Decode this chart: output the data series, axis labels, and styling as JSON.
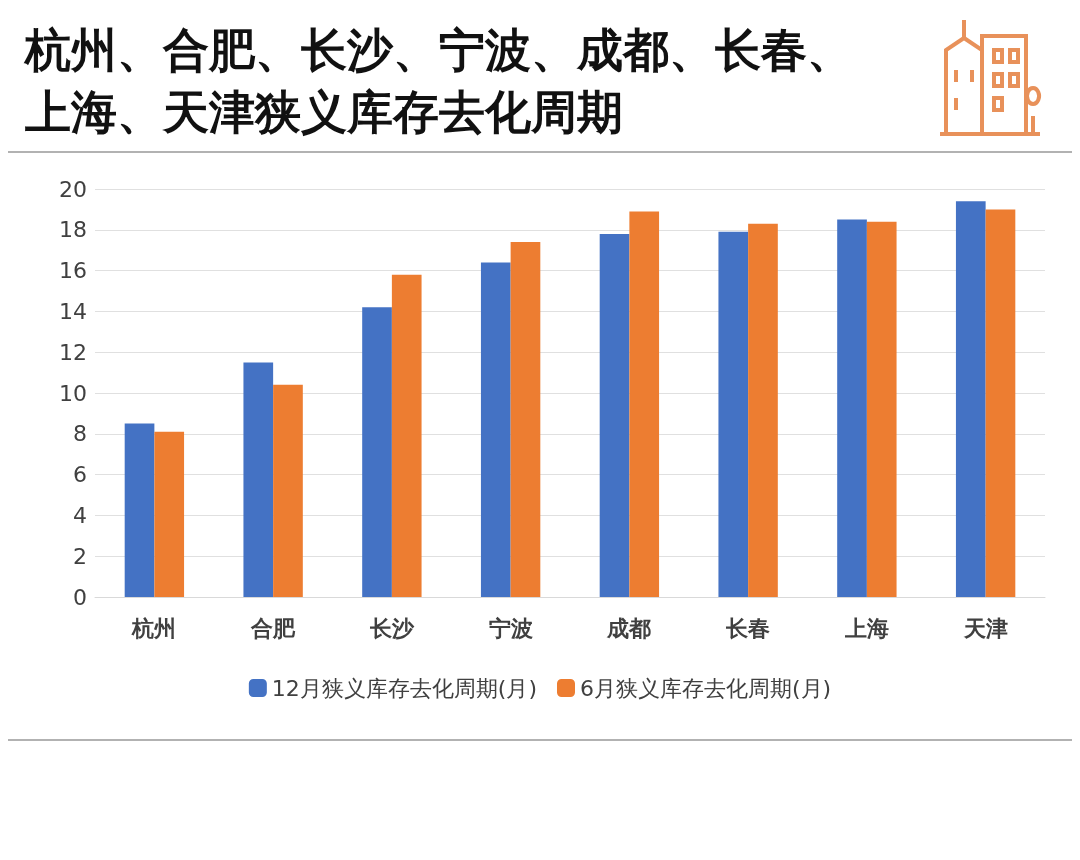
{
  "chart_data": {
    "type": "bar",
    "title": "杭州、合肥、长沙、宁波、成都、长春、上海、天津狭义库存去化周期",
    "categories": [
      "杭州",
      "合肥",
      "长沙",
      "宁波",
      "成都",
      "长春",
      "上海",
      "天津"
    ],
    "series": [
      {
        "name": "12月狭义库存去化周期(月)",
        "color": "#4472c4",
        "values": [
          8.5,
          11.5,
          14.2,
          16.4,
          17.8,
          17.9,
          18.5,
          19.4
        ]
      },
      {
        "name": "6月狭义库存去化周期(月)",
        "color": "#ed7d31",
        "values": [
          8.1,
          10.4,
          15.8,
          17.4,
          18.9,
          18.3,
          18.4,
          19.0
        ]
      }
    ],
    "ylim": [
      0,
      20
    ],
    "yticks": [
      0,
      2,
      4,
      6,
      8,
      10,
      12,
      14,
      16,
      18,
      20
    ],
    "grid": "y",
    "legend": "bottom"
  }
}
